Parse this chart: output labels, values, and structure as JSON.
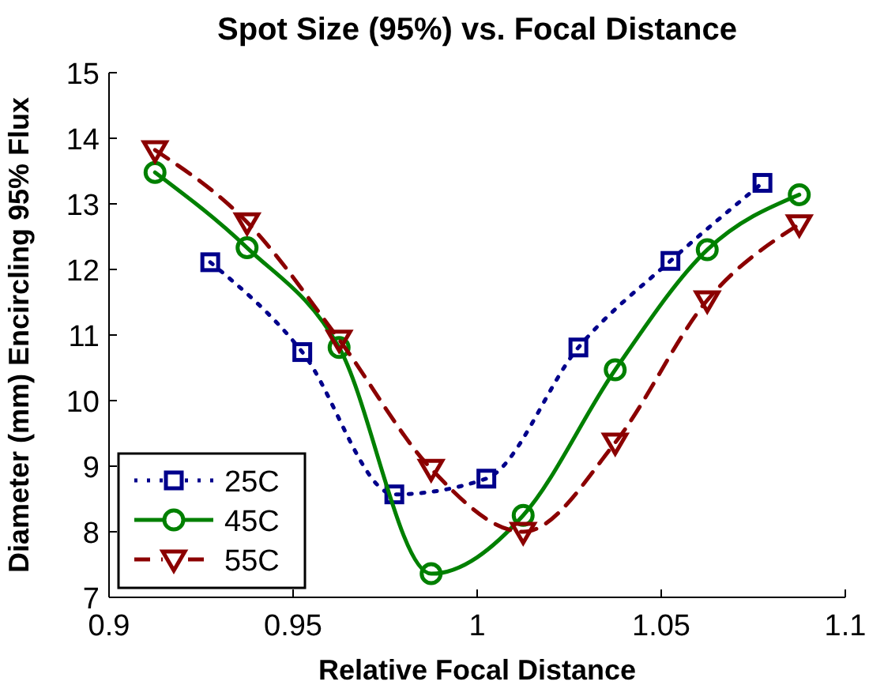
{
  "chart_data": {
    "type": "line",
    "title": "Spot Size (95%) vs. Focal Distance",
    "xlabel": "Relative Focal Distance",
    "ylabel": "Diameter (mm) Encircling 95% Flux",
    "xlim": [
      0.9,
      1.1
    ],
    "xticks": [
      0.9,
      0.95,
      1,
      1.05,
      1.1
    ],
    "ylim": [
      7,
      15
    ],
    "yticks": [
      7,
      8,
      9,
      10,
      11,
      12,
      13,
      14,
      15
    ],
    "grid": false,
    "legend": "bottom left",
    "series": [
      {
        "name": "25C",
        "color": "#00008b",
        "marker": "square",
        "line_style": "dotted",
        "x": [
          0.9275,
          0.9525,
          0.9775,
          1.0025,
          1.0275,
          1.0525,
          1.0775
        ],
        "values": [
          12.11,
          10.74,
          8.57,
          8.81,
          10.81,
          12.13,
          13.32
        ]
      },
      {
        "name": "45C",
        "color": "#008000",
        "marker": "circle",
        "line_style": "solid",
        "x": [
          0.9125,
          0.9375,
          0.9625,
          0.9875,
          1.0125,
          1.0375,
          1.0625,
          1.0875
        ],
        "values": [
          13.48,
          12.33,
          10.81,
          7.36,
          8.25,
          10.47,
          12.3,
          13.14
        ]
      },
      {
        "name": "55C",
        "color": "#8b0000",
        "marker": "triangle",
        "line_style": "dashed",
        "x": [
          0.9125,
          0.9375,
          0.9625,
          0.9875,
          1.0125,
          1.0375,
          1.0625,
          1.0875
        ],
        "values": [
          13.82,
          12.72,
          10.93,
          8.96,
          8.0,
          9.36,
          11.53,
          12.69
        ]
      }
    ]
  }
}
